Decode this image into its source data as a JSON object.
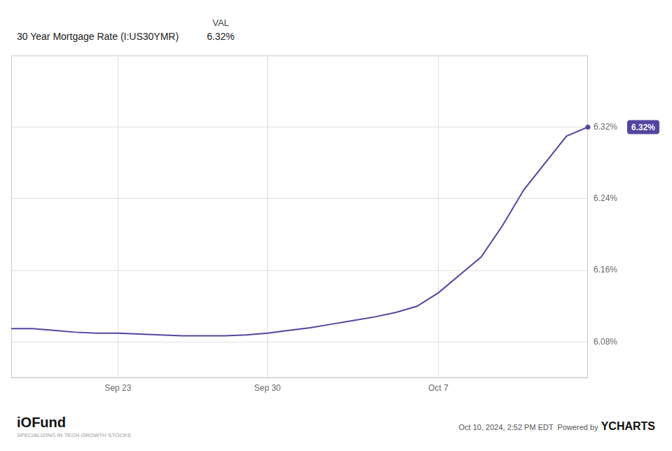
{
  "chart_data": {
    "type": "line",
    "title": "30 Year Mortgage Rate (I:US30YMR)",
    "header": {
      "column": "VAL",
      "value": "6.32%"
    },
    "categories": [
      null,
      null,
      null,
      null,
      null,
      "Sep 23",
      null,
      null,
      null,
      null,
      null,
      null,
      "Sep 30",
      null,
      null,
      null,
      null,
      null,
      null,
      null,
      "Oct 7",
      null,
      null,
      null,
      null,
      null,
      null,
      null
    ],
    "values": [
      6.095,
      6.095,
      6.093,
      6.091,
      6.09,
      6.09,
      6.089,
      6.088,
      6.087,
      6.087,
      6.087,
      6.088,
      6.09,
      6.093,
      6.096,
      6.1,
      6.104,
      6.108,
      6.113,
      6.12,
      6.135,
      6.155,
      6.175,
      6.21,
      6.25,
      6.28,
      6.31,
      6.32
    ],
    "color": "#5245a0",
    "ylim": [
      6.04,
      6.4
    ],
    "yticks": [
      {
        "value": 6.08,
        "label": "6.08%"
      },
      {
        "value": 6.16,
        "label": "6.16%"
      },
      {
        "value": 6.24,
        "label": "6.24%"
      },
      {
        "value": 6.32,
        "label": "6.32%"
      }
    ],
    "grid": true,
    "annotations": [
      {
        "text": "6.32%",
        "x": 27,
        "y": 6.32
      }
    ],
    "footer": {
      "logo": [
        "i",
        "O",
        "Fund"
      ],
      "tagline": "SPECIALIZING IN TECH GROWTH STOCKS",
      "source": "Oct 10, 2024, 2:52 PM EDT  Powered by",
      "source_brand": "YCHARTS"
    }
  }
}
